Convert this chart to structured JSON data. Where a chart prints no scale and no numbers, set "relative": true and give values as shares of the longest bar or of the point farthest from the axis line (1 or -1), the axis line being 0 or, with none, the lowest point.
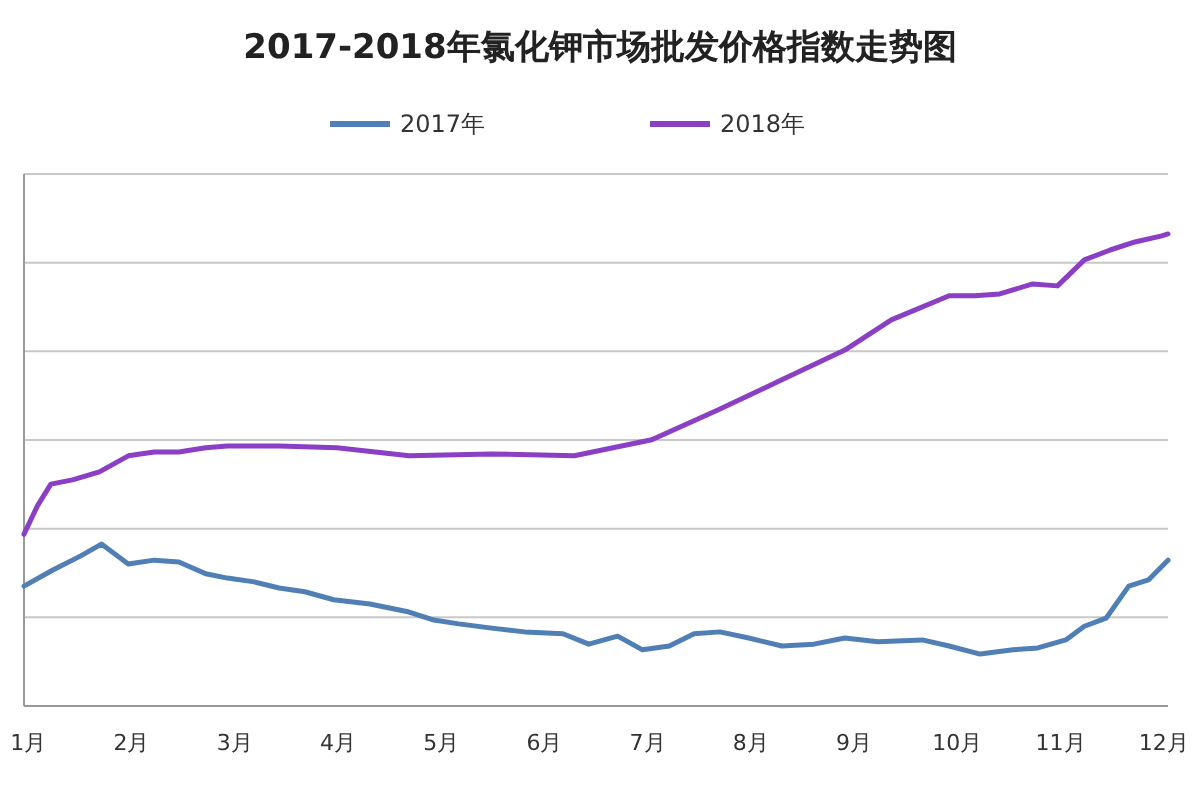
{
  "chart_data": {
    "type": "line",
    "title": "2017-2018年氯化钾市场批发价格指数走势图",
    "relative": true,
    "legend": "top",
    "grid": "y",
    "marker": "none",
    "line_style": "solid",
    "xlim": [
      0.96,
      12.04
    ],
    "xticks": [
      {
        "value": 1,
        "label": "1月"
      },
      {
        "value": 2,
        "label": "2月"
      },
      {
        "value": 3,
        "label": "3月"
      },
      {
        "value": 4,
        "label": "4月"
      },
      {
        "value": 5,
        "label": "5月"
      },
      {
        "value": 6,
        "label": "6月"
      },
      {
        "value": 7,
        "label": "7月"
      },
      {
        "value": 8,
        "label": "8月"
      },
      {
        "value": 9,
        "label": "9月"
      },
      {
        "value": 10,
        "label": "10月"
      },
      {
        "value": 11,
        "label": "11月"
      },
      {
        "value": 12,
        "label": "12月"
      }
    ],
    "series": [
      {
        "name": "2017年",
        "color": "#4f7fb5",
        "x": [
          0.96,
          1.24,
          1.51,
          1.71,
          1.97,
          2.22,
          2.46,
          2.72,
          2.93,
          3.19,
          3.43,
          3.68,
          3.96,
          4.31,
          4.69,
          4.93,
          5.17,
          5.49,
          5.81,
          6.18,
          6.43,
          6.71,
          6.95,
          7.21,
          7.45,
          7.7,
          7.98,
          8.3,
          8.61,
          8.91,
          9.23,
          9.66,
          9.92,
          10.22,
          10.54,
          10.78,
          11.05,
          11.23,
          11.44,
          11.66,
          11.85,
          12.04
        ],
        "values": [
          0.254,
          0.288,
          0.318,
          0.343,
          0.301,
          0.309,
          0.305,
          0.28,
          0.271,
          0.263,
          0.25,
          0.242,
          0.225,
          0.216,
          0.199,
          0.182,
          0.174,
          0.165,
          0.157,
          0.153,
          0.131,
          0.148,
          0.119,
          0.127,
          0.153,
          0.157,
          0.144,
          0.127,
          0.131,
          0.144,
          0.136,
          0.14,
          0.127,
          0.11,
          0.119,
          0.123,
          0.14,
          0.169,
          0.186,
          0.254,
          0.267,
          0.309
        ]
      },
      {
        "name": "2018年",
        "color": "#8a3fc4",
        "x": [
          0.96,
          1.09,
          1.22,
          1.43,
          1.69,
          1.97,
          2.22,
          2.46,
          2.72,
          2.93,
          3.43,
          3.99,
          4.69,
          5.49,
          6.29,
          7.04,
          7.68,
          8.3,
          8.91,
          9.36,
          9.92,
          10.17,
          10.41,
          10.73,
          10.97,
          11.23,
          11.48,
          11.72,
          11.98,
          12.04
        ],
        "values": [
          0.364,
          0.424,
          0.47,
          0.479,
          0.496,
          0.53,
          0.538,
          0.538,
          0.547,
          0.551,
          0.551,
          0.547,
          0.53,
          0.534,
          0.53,
          0.564,
          0.627,
          0.691,
          0.754,
          0.818,
          0.869,
          0.869,
          0.873,
          0.894,
          0.89,
          0.945,
          0.966,
          0.983,
          0.996,
          1
        ]
      }
    ]
  }
}
